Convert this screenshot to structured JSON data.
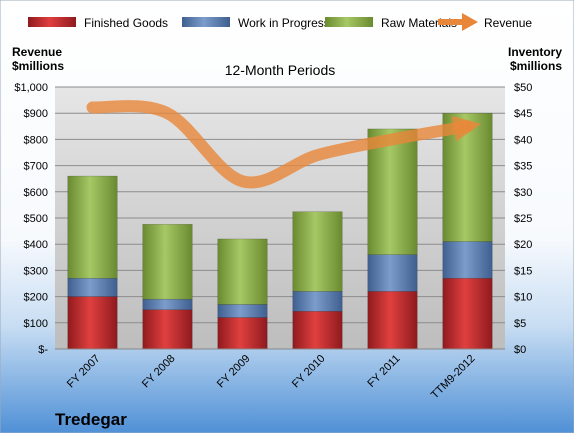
{
  "chart_data": {
    "type": "bar",
    "subtitle": "12-Month Periods",
    "company": "Tredegar",
    "left_axis_label_line1": "Revenue",
    "left_axis_label_line2": "$millions",
    "right_axis_label_line1": "Inventory",
    "right_axis_label_line2": "$millions",
    "categories": [
      "FY 2007",
      "FY 2008",
      "FY 2009",
      "FY 2010",
      "FY 2011",
      "TTM9-2012"
    ],
    "left_ticks": [
      "$-",
      "$100",
      "$200",
      "$300",
      "$400",
      "$500",
      "$600",
      "$700",
      "$800",
      "$900",
      "$1,000"
    ],
    "right_ticks": [
      "$0",
      "$5",
      "$10",
      "$15",
      "$20",
      "$25",
      "$30",
      "$35",
      "$40",
      "$45",
      "$50"
    ],
    "ylim_left": [
      0,
      1000
    ],
    "ylim_right": [
      0,
      50
    ],
    "stacked_series": [
      {
        "name": "Finished Goods",
        "color": "#c0282d",
        "values": [
          10,
          7.5,
          6,
          7.2,
          11,
          13.5
        ]
      },
      {
        "name": "Work in Progress",
        "color": "#5b7fb5",
        "values": [
          3.5,
          2,
          2.5,
          3.8,
          7,
          7
        ]
      },
      {
        "name": "Raw Materials",
        "color": "#8db04a",
        "values": [
          19.5,
          14.3,
          12.5,
          15.2,
          24,
          24.5
        ]
      }
    ],
    "line_series": {
      "name": "Revenue",
      "color": "#e8873a",
      "values": [
        922,
        900,
        640,
        740,
        800,
        850
      ]
    },
    "legend_position": "top",
    "grid": true
  }
}
